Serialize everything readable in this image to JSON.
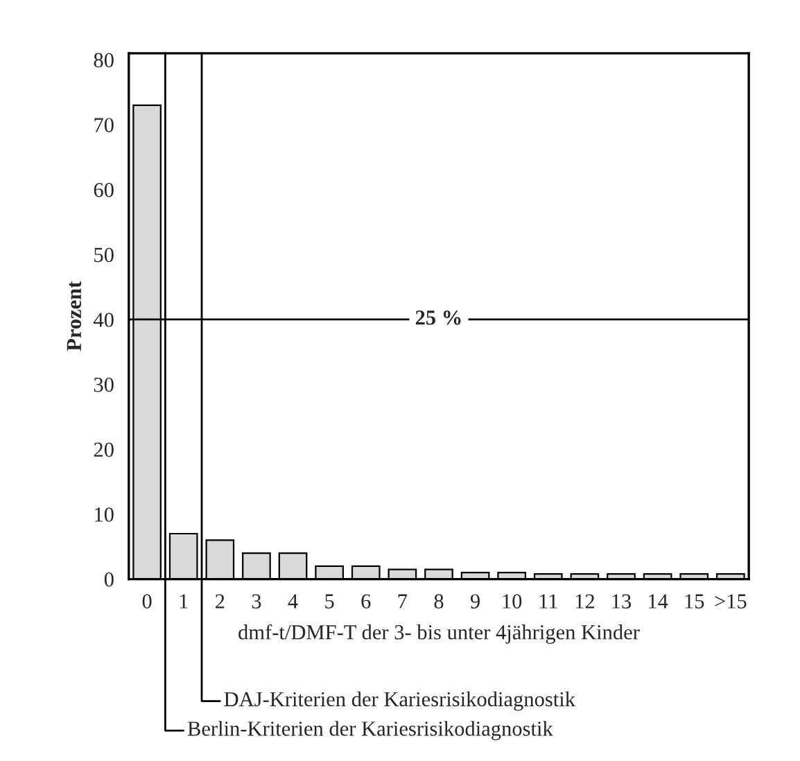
{
  "chart_data": {
    "type": "bar",
    "xlabel": "dmf-t/DMF-T der 3- bis unter 4jährigen Kinder",
    "ylabel": "Prozent",
    "x": [
      0,
      1,
      2,
      3,
      4,
      5,
      6,
      7,
      8,
      9,
      10,
      11,
      12,
      13,
      14,
      15,
      16
    ],
    "values": [
      73,
      7,
      6,
      4,
      4,
      2,
      2,
      1.5,
      1.5,
      1,
      1,
      0.8,
      0.8,
      0.8,
      0.8,
      0.8,
      0.8
    ],
    "color": "#d9d9d9",
    "xlim": [
      -0.5,
      16.5
    ],
    "xticks": [
      0,
      1,
      2,
      3,
      4,
      5,
      6,
      7,
      8,
      9,
      10,
      11,
      12,
      13,
      14,
      15,
      {
        "value": 16,
        "label": ">15"
      }
    ],
    "ylim": [
      0,
      81
    ],
    "yticks": [
      0,
      10,
      20,
      30,
      40,
      50,
      60,
      70,
      80
    ],
    "ref_lines": [
      {
        "axis": "y",
        "value": 40
      },
      {
        "axis": "x",
        "value": 1.5,
        "label": "DAJ-Kriterien der Kariesrisikodiagnostik"
      },
      {
        "axis": "x",
        "value": 0.5,
        "label": "Berlin-Kriterien der Kariesrisikodiagnostik"
      }
    ],
    "annotations": [
      "25 %"
    ],
    "grid": false,
    "legend": false
  }
}
